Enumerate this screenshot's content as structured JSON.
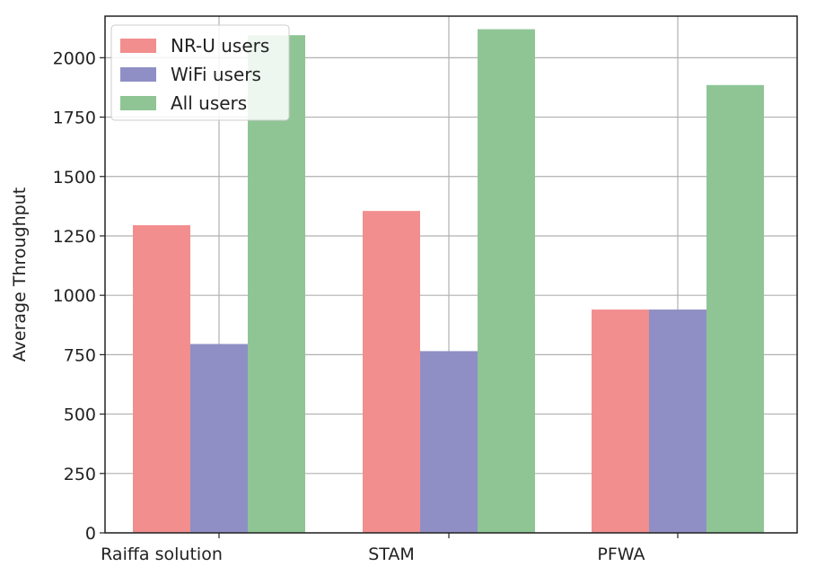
{
  "chart_data": {
    "type": "bar",
    "title": "",
    "xlabel": "",
    "ylabel": "Average Throughput",
    "categories": [
      "Raiffa solution",
      "STAM",
      "PFWA"
    ],
    "series": [
      {
        "name": "NR-U users",
        "values": [
          1295,
          1355,
          940
        ],
        "color": "#f28e8e"
      },
      {
        "name": "WiFi users",
        "values": [
          795,
          765,
          940
        ],
        "color": "#8f8fc6"
      },
      {
        "name": "All users",
        "values": [
          2095,
          2120,
          1885
        ],
        "color": "#8fc595"
      }
    ],
    "ylim": [
      0,
      2175
    ],
    "yticks": [
      0,
      250,
      500,
      750,
      1000,
      1250,
      1500,
      1750,
      2000
    ],
    "grid": true,
    "legend_position": "top-left"
  }
}
